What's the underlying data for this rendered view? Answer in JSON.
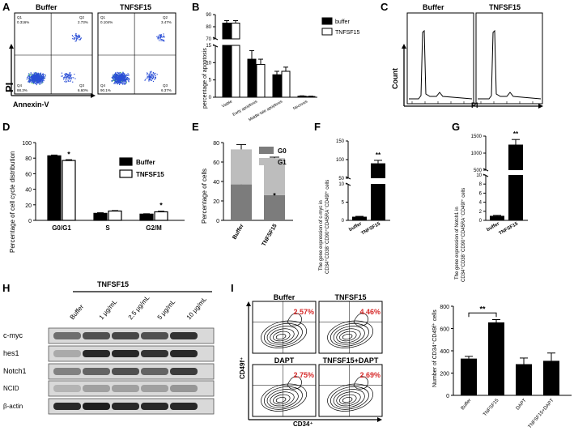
{
  "colors": {
    "black": "#000000",
    "white": "#ffffff",
    "grey_dark": "#7c7c7c",
    "grey_light": "#bdbdbd",
    "red": "#d62a2a",
    "flow_blue": "#2b4fd6",
    "flow_green": "#3fd14a"
  },
  "panels": {
    "A": {
      "letter": "A",
      "plots": [
        {
          "title": "Buffer",
          "q1": "0.316%",
          "q2": "2.73%",
          "q3": "6.60%",
          "q4": "88.3%",
          "q1l": "Q1",
          "q2l": "Q2",
          "q3l": "Q3",
          "q4l": "Q4"
        },
        {
          "title": "TNFSF15",
          "q1": "0.104%",
          "q2": "3.47%",
          "q3": "6.37%",
          "q4": "90.1%",
          "q1l": "Q1",
          "q2l": "Q2",
          "q3l": "Q3",
          "q4l": "Q4"
        }
      ],
      "ylabel": "PI",
      "xlabel": "Annexin-V"
    },
    "B": {
      "letter": "B",
      "chart_data": {
        "type": "bar",
        "ylabel": "percentage of apoptosis",
        "categories": [
          "Viable",
          "Early apoptosis",
          "Middle-late apoptosis",
          "Necrosis"
        ],
        "series": [
          {
            "name": "buffer",
            "values": [
              83,
              11,
              6.5,
              0.3
            ],
            "errors": [
              2,
              2.5,
              1,
              0.1
            ]
          },
          {
            "name": "TNFSF15",
            "values": [
              83,
              9.5,
              7.5,
              0.2
            ],
            "errors": [
              2,
              1.5,
              1.2,
              0.1
            ]
          }
        ],
        "y_ticks_lower": [
          "0",
          "5",
          "10",
          "15"
        ],
        "y_ticks_upper": [
          "70",
          "80",
          "90"
        ],
        "axis_break": [
          15,
          70
        ]
      }
    },
    "C": {
      "letter": "C",
      "plots": [
        {
          "title": "Buffer"
        },
        {
          "title": "TNFSF15"
        }
      ],
      "ylabel": "Count",
      "xlabel": "PI"
    },
    "D": {
      "letter": "D",
      "chart_data": {
        "type": "bar",
        "ylabel": "Percentage of cell cycle distribution",
        "categories": [
          "G0/G1",
          "S",
          "G2/M"
        ],
        "series": [
          {
            "name": "Buffer",
            "values": [
              83,
              9,
              8
            ],
            "errors": [
              1,
              0.8,
              0.5
            ]
          },
          {
            "name": "TNFSF15",
            "values": [
              77,
              12,
              11
            ],
            "errors": [
              1,
              0.6,
              0.8
            ]
          }
        ],
        "ylim": [
          0,
          100
        ],
        "yticks": [
          "0",
          "20",
          "40",
          "60",
          "80",
          "100"
        ],
        "annotations": [
          "*",
          "*"
        ]
      }
    },
    "E": {
      "letter": "E",
      "chart_data": {
        "type": "bar",
        "stacked": true,
        "ylabel": "Percentage of cells",
        "categories": [
          "Buffer",
          "TNFSF15"
        ],
        "series": [
          {
            "name": "G0",
            "values": [
              37,
              26
            ],
            "errors": [
              2,
              1
            ]
          },
          {
            "name": "G1",
            "values": [
              36,
              38
            ],
            "errors": [
              5,
              1
            ]
          }
        ],
        "ylim": [
          0,
          80
        ],
        "yticks": [
          "0",
          "20",
          "40",
          "60",
          "80"
        ],
        "annotations": [
          "*"
        ]
      }
    },
    "F": {
      "letter": "F",
      "chart_data": {
        "type": "bar",
        "ylabel_1": "The gene expression of c-myc in",
        "ylabel_2": "CD34⁺CD38⁻CD90⁺CD45RA⁻CD49f⁺ cells",
        "categories": [
          "buffer",
          "TNFSF15"
        ],
        "values": [
          1,
          90
        ],
        "errors": [
          0.1,
          8
        ],
        "y_ticks_lower": [
          "0",
          "5",
          "10"
        ],
        "y_ticks_upper": [
          "50",
          "100",
          "150"
        ],
        "axis_break": [
          10,
          50
        ],
        "annotations": [
          "**"
        ]
      }
    },
    "G": {
      "letter": "G",
      "chart_data": {
        "type": "bar",
        "ylabel_1": "The gene expression of Notch1 in",
        "ylabel_2": "CD34⁺CD38⁻CD90⁺CD45RA⁻CD49f⁺ cells",
        "categories": [
          "buffer",
          "TNFSF15"
        ],
        "values": [
          1,
          1250
        ],
        "errors": [
          0.1,
          150
        ],
        "y_ticks_lower": [
          "0",
          "2",
          "4",
          "6",
          "8",
          "10"
        ],
        "y_ticks_upper": [
          "500",
          "1000",
          "1500"
        ],
        "axis_break": [
          10,
          500
        ],
        "annotations": [
          "**"
        ]
      }
    },
    "H": {
      "letter": "H",
      "header": "TNFSF15",
      "lanes": [
        "Buffer",
        "1 μg/mL",
        "2.5 μg/mL",
        "5 μg/mL",
        "10 μg/mL"
      ],
      "bands": [
        "c-myc",
        "hes1",
        "Notch1",
        "NCID",
        "β-actin"
      ],
      "intensity": [
        [
          0.55,
          0.7,
          0.75,
          0.7,
          0.85
        ],
        [
          0.25,
          0.9,
          0.9,
          0.85,
          0.9
        ],
        [
          0.45,
          0.6,
          0.7,
          0.6,
          0.8
        ],
        [
          0.2,
          0.3,
          0.3,
          0.3,
          0.35
        ],
        [
          0.9,
          0.95,
          0.9,
          0.9,
          0.9
        ]
      ]
    },
    "I": {
      "letter": "I",
      "flow": [
        {
          "title": "Buffer",
          "pct": "2.57%"
        },
        {
          "title": "TNFSF15",
          "pct": "4.46%"
        },
        {
          "title": "DAPT",
          "pct": "2.75%"
        },
        {
          "title": "TNFSF15+DAPT",
          "pct": "2.69%"
        }
      ],
      "flow_ylabel": "CD49f⁺",
      "flow_xlabel": "CD34⁺",
      "chart_data": {
        "type": "bar",
        "ylabel": "Number of CD34⁺CD49f⁺ cells",
        "categories": [
          "Buffer",
          "TNFSF15",
          "DAPT",
          "TNFSF15+DAPT"
        ],
        "values": [
          330,
          655,
          280,
          310
        ],
        "errors": [
          20,
          25,
          55,
          70
        ],
        "ylim": [
          0,
          800
        ],
        "yticks": [
          "0",
          "200",
          "400",
          "600",
          "800"
        ],
        "annotations": [
          "**"
        ]
      }
    }
  }
}
